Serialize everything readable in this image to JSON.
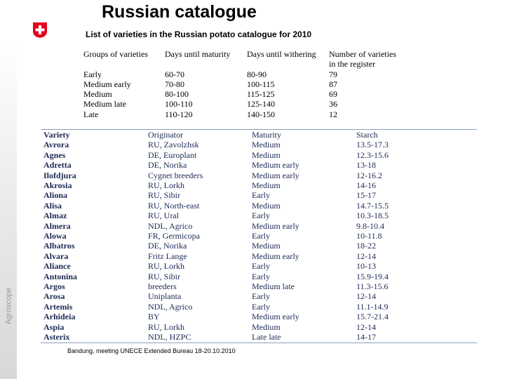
{
  "header": {
    "title": "Russian catalogue",
    "subtitle": "List of varieties in the Russian potato catalogue for 2010"
  },
  "branding": {
    "logo_text": "Agroscope"
  },
  "summary_table": {
    "columns": [
      "Groups of varieties",
      "Days until maturity",
      "Days until withering",
      "Number of varieties in the register"
    ],
    "rows": [
      [
        "Early",
        "60-70",
        "80-90",
        "79"
      ],
      [
        "Medium early",
        "70-80",
        "100-115",
        "87"
      ],
      [
        "Medium",
        "80-100",
        "115-125",
        "69"
      ],
      [
        "Medium late",
        "100-110",
        "125-140",
        "36"
      ],
      [
        "Late",
        "110-120",
        "140-150",
        "12"
      ]
    ]
  },
  "variety_table": {
    "columns": [
      "Variety",
      "Originator",
      "Maturity",
      "Starch"
    ],
    "rows": [
      [
        "Avrora",
        "RU, Zavolzhsk",
        "Medium",
        "13.5-17.3"
      ],
      [
        "Agnes",
        "DE, Europlant",
        "Medium",
        "12.3-15.6"
      ],
      [
        "Adretta",
        "DE, Norika",
        "Medium early",
        "13-18"
      ],
      [
        "Ilofdjura",
        "Cygnet breeders",
        "Medium early",
        "12-16.2"
      ],
      [
        "Akrosia",
        "RU, Lorkh",
        "Medium",
        "14-16"
      ],
      [
        "Aliona",
        "RU, Sibir",
        "Early",
        "15-17"
      ],
      [
        "Alisa",
        "RU, North-east",
        "Medium",
        "14.7-15.5"
      ],
      [
        "Almaz",
        "RU, Ural",
        "Early",
        "10.3-18.5"
      ],
      [
        "Almera",
        "NDL, Agrico",
        "Medium early",
        "9.8-10.4"
      ],
      [
        "Alowa",
        "FR, Germicopa",
        "Early",
        "10-11.8"
      ],
      [
        "Albatros",
        "DE, Norika",
        "Medium",
        "18-22"
      ],
      [
        "Alvara",
        "Fritz Lange",
        "Medium early",
        "12-14"
      ],
      [
        "Aliance",
        "RU, Lorkh",
        "Early",
        "10-13"
      ],
      [
        "Antonina",
        "RU, Sibir",
        "Early",
        "15.9-19.4"
      ],
      [
        "Argos",
        "breeders",
        "Medium late",
        "11.3-15.6"
      ],
      [
        "Arosa",
        "Uniplanta",
        "Early",
        "12-14"
      ],
      [
        "Artemis",
        "NDL, Agrico",
        "Early",
        "11.1-14.9"
      ],
      [
        "Arhideia",
        "BY",
        "Medium early",
        "15.7-21.4"
      ],
      [
        "Aspia",
        "RU, Lorkh",
        "Medium",
        "12-14"
      ],
      [
        "Asterix",
        "NDL, HZPC",
        "Late late",
        "14-17"
      ]
    ]
  },
  "footer": {
    "text": "Bandung, meeting UNECE Extended Bureau 18-20.10.2010"
  }
}
